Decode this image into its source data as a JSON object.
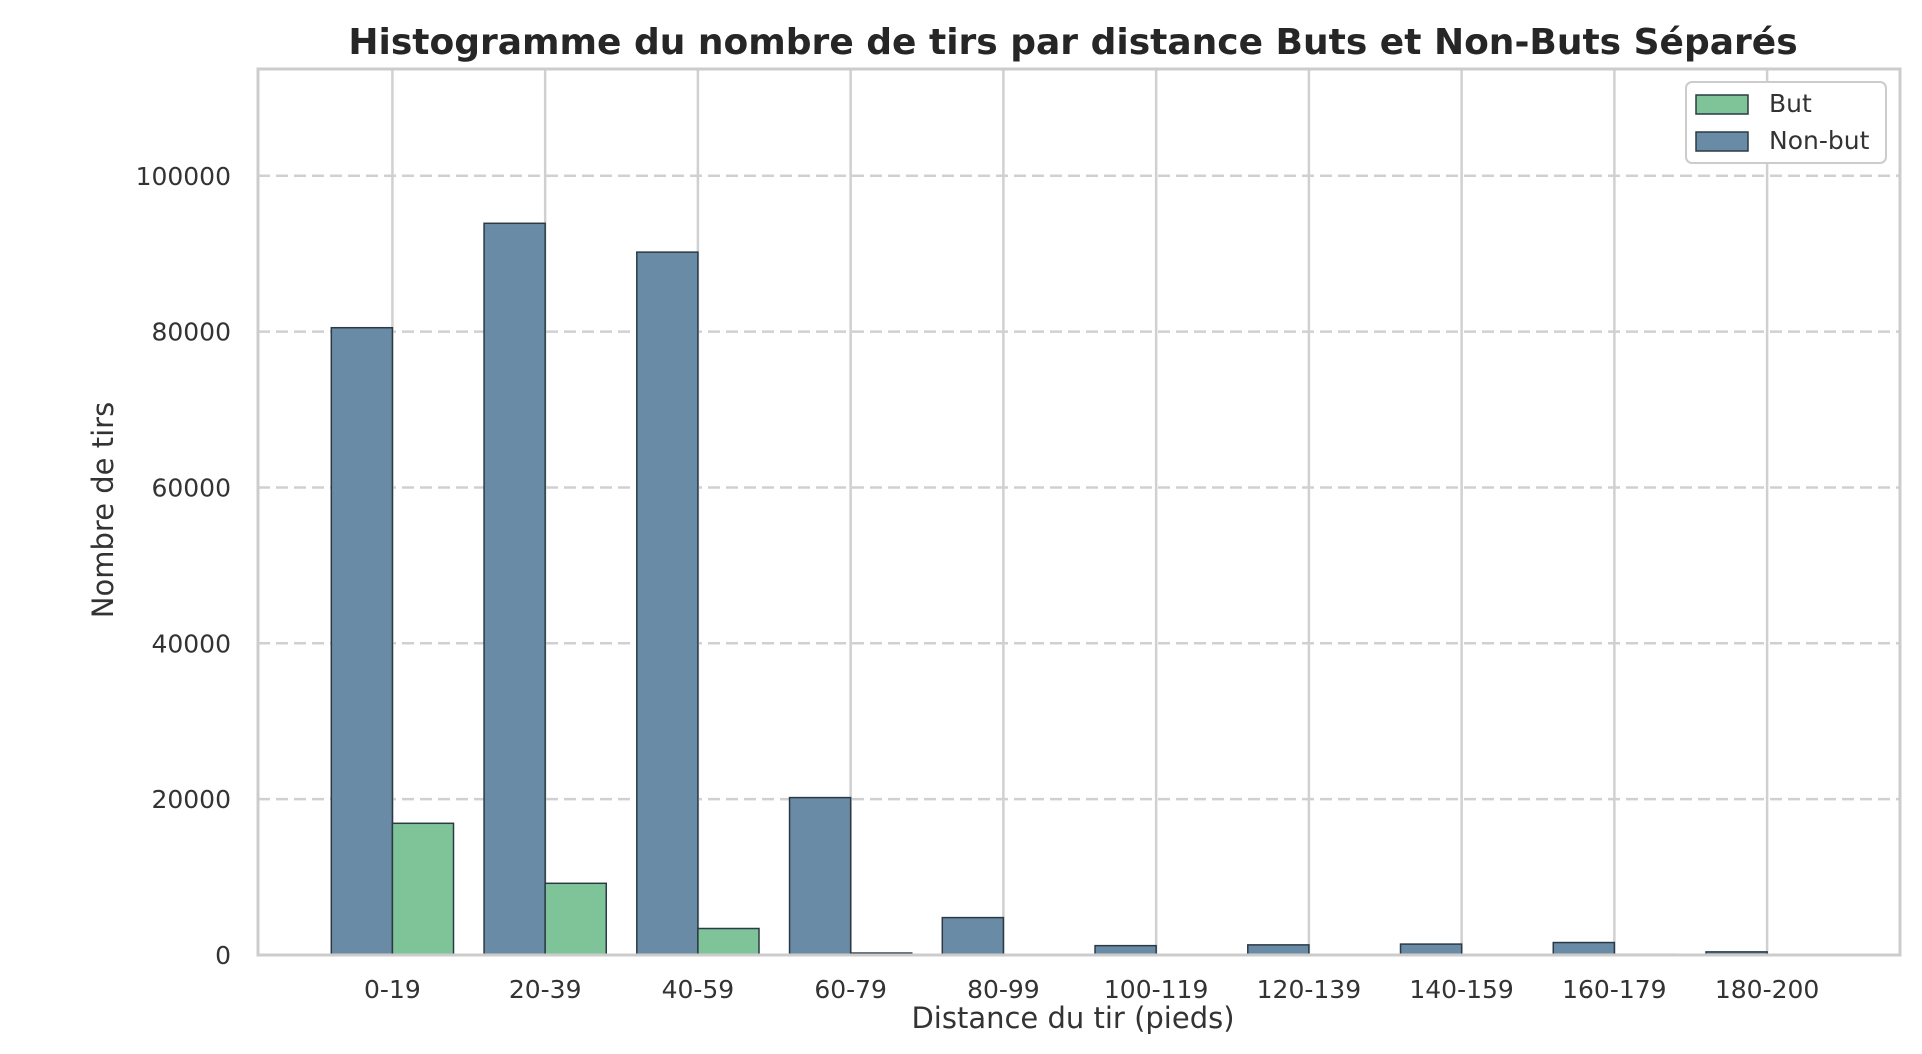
{
  "chart_data": {
    "type": "bar",
    "title": "Histogramme du nombre de tirs par distance Buts et Non-Buts Séparés",
    "xlabel": "Distance du tir (pieds)",
    "ylabel": "Nombre de tirs",
    "categories": [
      "0-19",
      "20-39",
      "40-59",
      "60-79",
      "80-99",
      "100-119",
      "120-139",
      "140-159",
      "160-179",
      "180-200"
    ],
    "series": [
      {
        "name": "But",
        "color": "#7fc499",
        "values": [
          16900,
          9200,
          3400,
          250,
          80,
          30,
          20,
          30,
          100,
          20
        ]
      },
      {
        "name": "Non-but",
        "color": "#6a8ba6",
        "values": [
          80500,
          93900,
          90200,
          20200,
          4800,
          1200,
          1300,
          1400,
          1600,
          400
        ]
      }
    ],
    "ylim": [
      0,
      113700
    ],
    "yticks": [
      0,
      20000,
      40000,
      60000,
      80000,
      100000
    ],
    "grid": true,
    "legend_position": "top-right"
  }
}
